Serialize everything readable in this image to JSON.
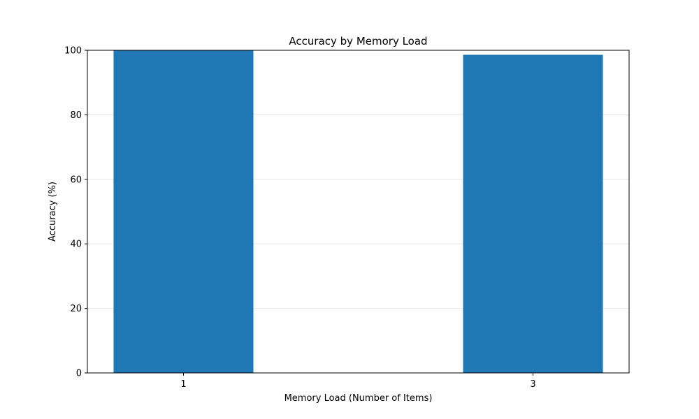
{
  "chart_data": {
    "type": "bar",
    "title": "Accuracy by Memory Load",
    "xlabel": "Memory Load (Number of Items)",
    "ylabel": "Accuracy (%)",
    "categories": [
      "1",
      "3"
    ],
    "x_values": [
      1,
      3
    ],
    "xlim": [
      0.45,
      3.55
    ],
    "values": [
      100.0,
      98.6
    ],
    "ylim": [
      0,
      100
    ],
    "yticks": [
      0,
      20,
      40,
      60,
      80,
      100
    ],
    "bar_width": 0.8,
    "bar_color": "#1f77b4",
    "grid": "y-major",
    "grid_color": "#e6e6e6",
    "legend": "none"
  }
}
